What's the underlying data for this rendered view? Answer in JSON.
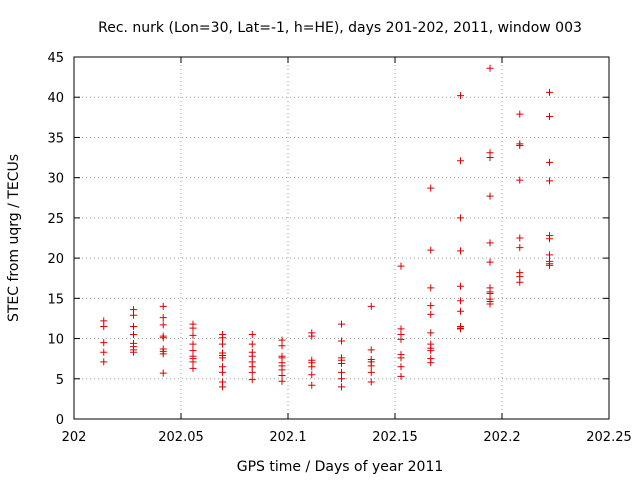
{
  "chart_data": {
    "type": "scatter",
    "title": "Rec. nurk (Lon=30, Lat=-1, h=HE), days 201-202, 2011, window 003",
    "xlabel": "GPS time / Days of year 2011",
    "ylabel": "STEC from uqrg / TECUs",
    "xlim": [
      202,
      202.25
    ],
    "ylim": [
      0,
      45
    ],
    "xticks": [
      "202",
      "202.05",
      "202.1",
      "202.15",
      "202.2",
      "202.25"
    ],
    "xtick_values": [
      202,
      202.05,
      202.1,
      202.15,
      202.2,
      202.25
    ],
    "yticks": [
      "0",
      "5",
      "10",
      "15",
      "20",
      "25",
      "30",
      "35",
      "40",
      "45"
    ],
    "ytick_values": [
      0,
      5,
      10,
      15,
      20,
      25,
      30,
      35,
      40,
      45
    ],
    "grid": true,
    "marker_color": "#dd0000",
    "series": [
      {
        "x": [
          202.0139,
          202.0139,
          202.0139,
          202.0139,
          202.0139,
          202.0278,
          202.0278,
          202.0278,
          202.0278,
          202.0278,
          202.0278,
          202.0278,
          202.0278,
          202.0417,
          202.0417,
          202.0417,
          202.0417,
          202.0417,
          202.0417,
          202.0417,
          202.0417,
          202.0417,
          202.0556,
          202.0556,
          202.0556,
          202.0556,
          202.0556,
          202.0556,
          202.0556,
          202.0556,
          202.0556,
          202.0694,
          202.0694,
          202.0694,
          202.0694,
          202.0694,
          202.0694,
          202.0694,
          202.0694,
          202.0694,
          202.0694,
          202.0833,
          202.0833,
          202.0833,
          202.0833,
          202.0833,
          202.0833,
          202.0833,
          202.0833,
          202.0972,
          202.0972,
          202.0972,
          202.0972,
          202.0972,
          202.0972,
          202.0972,
          202.0972,
          202.0972,
          202.1111,
          202.1111,
          202.1111,
          202.1111,
          202.1111,
          202.1111,
          202.1111,
          202.125,
          202.125,
          202.125,
          202.125,
          202.125,
          202.125,
          202.125,
          202.125,
          202.1389,
          202.1389,
          202.1389,
          202.1389,
          202.1389,
          202.1389,
          202.1389,
          202.1528,
          202.1528,
          202.1528,
          202.1528,
          202.1528,
          202.1528,
          202.1528,
          202.1528,
          202.1667,
          202.1667,
          202.1667,
          202.1667,
          202.1667,
          202.1667,
          202.1667,
          202.1667,
          202.1667,
          202.1667,
          202.1667,
          202.1806,
          202.1806,
          202.1806,
          202.1806,
          202.1806,
          202.1806,
          202.1806,
          202.1806,
          202.1806,
          202.1806,
          202.1944,
          202.1944,
          202.1944,
          202.1944,
          202.1944,
          202.1944,
          202.1944,
          202.1944,
          202.1944,
          202.1944,
          202.1944,
          202.1944,
          202.2083,
          202.2083,
          202.2083,
          202.2083,
          202.2083,
          202.2083,
          202.2083,
          202.2083,
          202.2083,
          202.2222,
          202.2222,
          202.2222,
          202.2222,
          202.2222,
          202.2222,
          202.2222,
          202.2222,
          202.2222,
          202.2222
        ],
        "y": [
          12.2,
          11.5,
          9.5,
          8.3,
          7.1,
          13.6,
          12.9,
          11.5,
          10.5,
          9.4,
          9.0,
          8.6,
          8.3,
          14.0,
          12.6,
          11.7,
          10.3,
          10.1,
          8.7,
          8.4,
          8.1,
          5.7,
          11.8,
          11.3,
          10.4,
          9.3,
          8.5,
          7.8,
          7.5,
          7.1,
          6.3,
          10.5,
          10.1,
          9.3,
          8.2,
          7.9,
          7.6,
          6.5,
          5.8,
          4.6,
          4.0,
          10.5,
          9.3,
          8.3,
          7.8,
          7.1,
          6.5,
          5.8,
          4.9,
          9.8,
          9.1,
          7.8,
          7.6,
          7.0,
          6.6,
          6.1,
          5.4,
          4.7,
          10.7,
          10.3,
          7.3,
          7.0,
          6.5,
          5.5,
          4.2,
          11.8,
          9.7,
          7.6,
          7.3,
          6.9,
          5.8,
          5.0,
          4.0,
          14.0,
          8.6,
          7.4,
          7.1,
          6.6,
          5.8,
          4.6,
          19.0,
          11.2,
          10.5,
          9.9,
          8.0,
          7.6,
          6.5,
          5.3,
          28.7,
          21.0,
          16.3,
          14.1,
          13.0,
          10.7,
          9.3,
          8.8,
          8.5,
          7.5,
          7.0,
          40.2,
          32.1,
          25.0,
          20.9,
          16.5,
          14.7,
          13.4,
          11.5,
          11.3,
          11.2,
          43.6,
          33.1,
          32.5,
          27.7,
          21.9,
          19.5,
          16.3,
          15.8,
          15.6,
          14.9,
          14.6,
          14.3,
          37.9,
          34.2,
          34.0,
          29.7,
          22.5,
          21.3,
          18.2,
          17.7,
          17.0,
          40.6,
          37.6,
          31.9,
          29.6,
          22.8,
          22.4,
          20.4,
          19.6,
          19.3,
          19.1
        ]
      }
    ]
  }
}
